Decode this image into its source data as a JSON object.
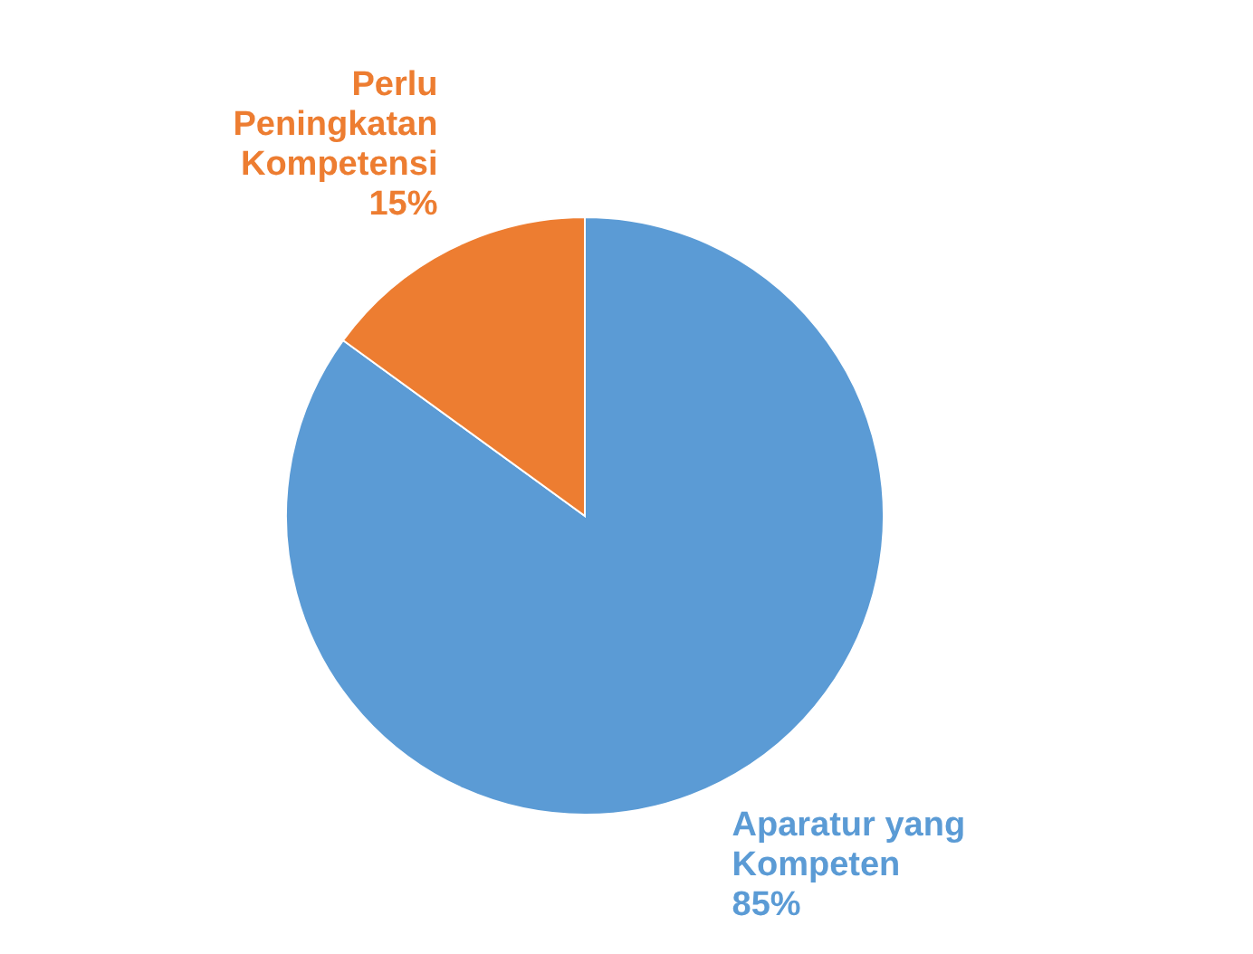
{
  "chart_data": {
    "type": "pie",
    "categories": [
      "Aparatur yang Kompeten",
      "Perlu Peningkatan Kompetensi"
    ],
    "values": [
      85,
      15
    ],
    "colors": [
      "#5b9bd5",
      "#ed7d31"
    ],
    "value_labels": [
      "85%",
      "15%"
    ],
    "legend": false
  }
}
